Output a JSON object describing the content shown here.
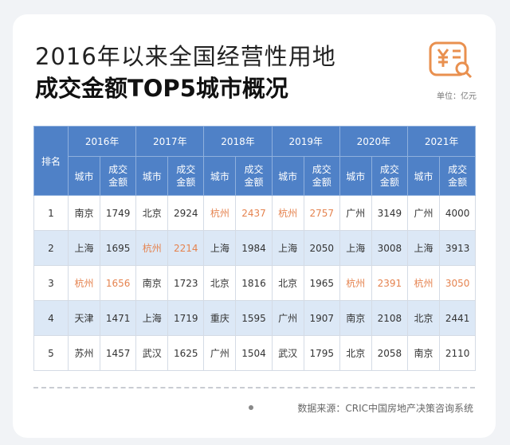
{
  "header": {
    "title_line1": "2016年以来全国经营性用地",
    "title_line2": "成交金额TOP5城市概况",
    "unit": "单位：亿元"
  },
  "table": {
    "rank_header": "排名",
    "highlight": {
      "city": "杭州",
      "color": "#e5834f"
    },
    "columns": [
      {
        "year": "2016年",
        "city_label": "城市",
        "amount_label": "成交金额"
      },
      {
        "year": "2017年",
        "city_label": "城市",
        "amount_label": "成交金额"
      },
      {
        "year": "2018年",
        "city_label": "城市",
        "amount_label": "成交金额"
      },
      {
        "year": "2019年",
        "city_label": "城市",
        "amount_label": "成交金额"
      },
      {
        "year": "2020年",
        "city_label": "城市",
        "amount_label": "成交金额"
      },
      {
        "year": "2021年",
        "city_label": "城市",
        "amount_label": "成交金额"
      }
    ],
    "rows": [
      {
        "rank": "1",
        "cells": [
          [
            "南京",
            1749
          ],
          [
            "北京",
            2924
          ],
          [
            "杭州",
            2437
          ],
          [
            "杭州",
            2757
          ],
          [
            "广州",
            3149
          ],
          [
            "广州",
            4000
          ]
        ]
      },
      {
        "rank": "2",
        "cells": [
          [
            "上海",
            1695
          ],
          [
            "杭州",
            2214
          ],
          [
            "上海",
            1984
          ],
          [
            "上海",
            2050
          ],
          [
            "上海",
            3008
          ],
          [
            "上海",
            3913
          ]
        ]
      },
      {
        "rank": "3",
        "cells": [
          [
            "杭州",
            1656
          ],
          [
            "南京",
            1723
          ],
          [
            "北京",
            1816
          ],
          [
            "北京",
            1965
          ],
          [
            "杭州",
            2391
          ],
          [
            "杭州",
            3050
          ]
        ]
      },
      {
        "rank": "4",
        "cells": [
          [
            "天津",
            1471
          ],
          [
            "上海",
            1719
          ],
          [
            "重庆",
            1595
          ],
          [
            "广州",
            1907
          ],
          [
            "南京",
            2108
          ],
          [
            "北京",
            2441
          ]
        ]
      },
      {
        "rank": "5",
        "cells": [
          [
            "苏州",
            1457
          ],
          [
            "武汉",
            1625
          ],
          [
            "广州",
            1504
          ],
          [
            "武汉",
            1795
          ],
          [
            "北京",
            2058
          ],
          [
            "南京",
            2110
          ]
        ]
      }
    ]
  },
  "footer": {
    "source": "数据来源：CRIC中国房地产决策咨询系统"
  }
}
